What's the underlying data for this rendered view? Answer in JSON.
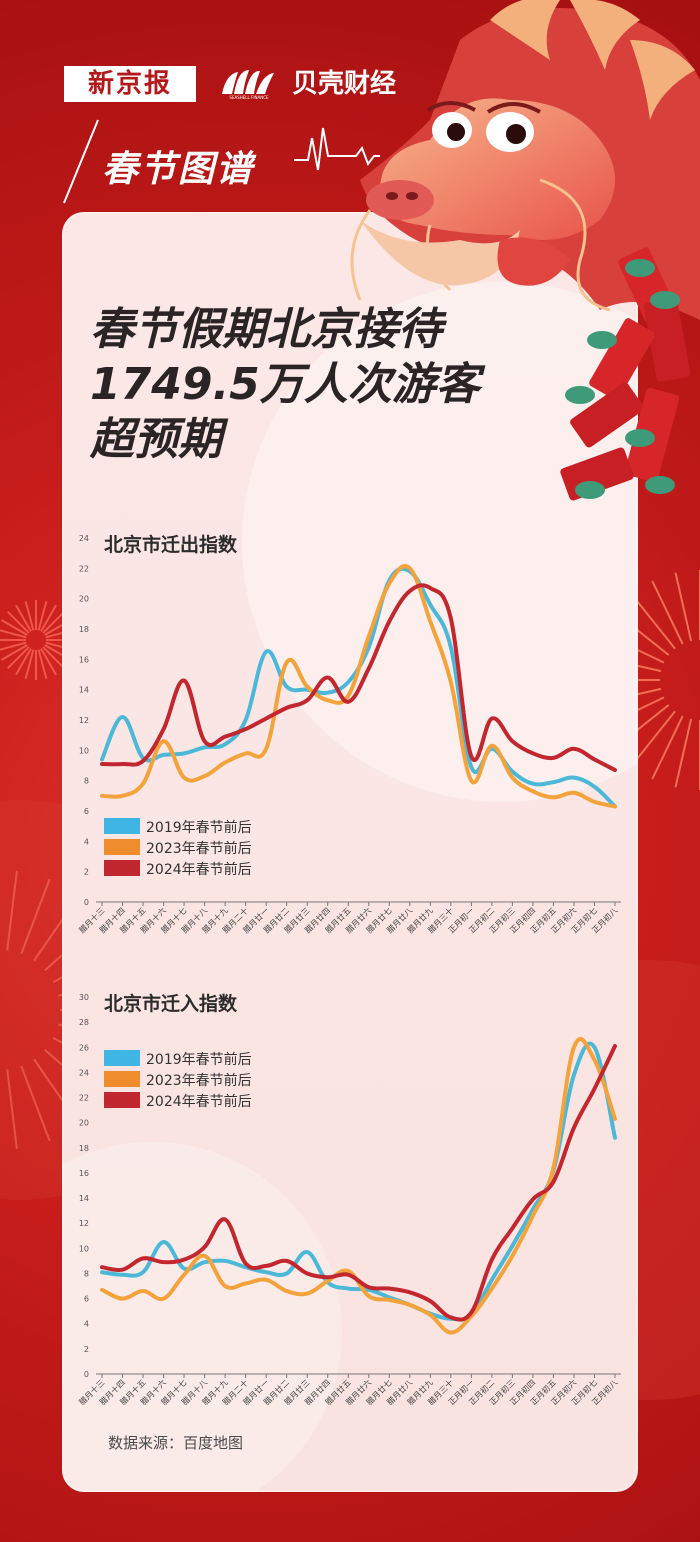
{
  "header": {
    "brand_xjb": "新京报",
    "brand_bk": "贝壳财经",
    "brand_bk_en": "SEASHELL FINANCE",
    "subtitle": "春节图谱"
  },
  "headline": {
    "line1": "春节假期北京接待",
    "line2": "1749.5万人次游客",
    "line3": "超预期"
  },
  "source": "数据来源：百度地图",
  "colors": {
    "s2019": "#4cb8d8",
    "s2023": "#f4a33c",
    "s2024": "#c2262f",
    "legend2019": "#3fb6e4",
    "legend2023": "#ef8d2e",
    "legend2024": "#c2262f"
  },
  "chart_data": [
    {
      "type": "line",
      "title": "北京市迁出指数",
      "categories": [
        "腊月十三",
        "腊月十四",
        "腊月十五",
        "腊月十六",
        "腊月十七",
        "腊月十八",
        "腊月十九",
        "腊月二十",
        "腊月廿一",
        "腊月廿二",
        "腊月廿三",
        "腊月廿四",
        "腊月廿五",
        "腊月廿六",
        "腊月廿七",
        "腊月廿八",
        "腊月廿九",
        "腊月三十",
        "正月初一",
        "正月初二",
        "正月初三",
        "正月初四",
        "正月初五",
        "正月初六",
        "正月初七",
        "正月初八"
      ],
      "ylim": [
        0,
        24
      ],
      "yticks": [
        "0",
        "2",
        "4",
        "6",
        "8",
        "10",
        "12",
        "14",
        "16",
        "18",
        "20",
        "22",
        "24"
      ],
      "legend": "left",
      "series": [
        {
          "name": "2019年春节前后",
          "values": [
            9.4,
            12.2,
            9.5,
            9.7,
            9.8,
            10.2,
            10.4,
            12.0,
            16.5,
            14.2,
            14.0,
            13.8,
            14.5,
            16.8,
            21.2,
            21.8,
            19.6,
            16.8,
            8.9,
            10.1,
            8.6,
            7.8,
            7.9,
            8.2,
            7.6,
            6.3
          ]
        },
        {
          "name": "2023年春节前后",
          "values": [
            7.0,
            7.0,
            7.8,
            10.6,
            8.2,
            8.3,
            9.2,
            9.8,
            10.1,
            15.8,
            14.2,
            13.3,
            13.6,
            17.5,
            21.0,
            22.0,
            18.5,
            14.5,
            8.0,
            10.3,
            8.2,
            7.3,
            6.9,
            7.2,
            6.6,
            6.3
          ]
        },
        {
          "name": "2024年春节前后",
          "values": [
            9.1,
            9.1,
            9.3,
            11.4,
            14.6,
            10.6,
            10.9,
            11.4,
            12.1,
            12.8,
            13.3,
            14.8,
            13.2,
            15.4,
            18.5,
            20.5,
            20.7,
            18.7,
            9.6,
            12.1,
            10.6,
            9.8,
            9.5,
            10.1,
            9.4,
            8.7
          ]
        }
      ]
    },
    {
      "type": "line",
      "title": "北京市迁入指数",
      "categories": [
        "腊月十三",
        "腊月十四",
        "腊月十五",
        "腊月十六",
        "腊月十七",
        "腊月十八",
        "腊月十九",
        "腊月二十",
        "腊月廿一",
        "腊月廿二",
        "腊月廿三",
        "腊月廿四",
        "腊月廿五",
        "腊月廿六",
        "腊月廿七",
        "腊月廿八",
        "腊月廿九",
        "腊月三十",
        "正月初一",
        "正月初二",
        "正月初三",
        "正月初四",
        "正月初五",
        "正月初六",
        "正月初七",
        "正月初八"
      ],
      "ylim": [
        0,
        30
      ],
      "yticks": [
        "0",
        "2",
        "4",
        "6",
        "8",
        "10",
        "12",
        "14",
        "16",
        "18",
        "20",
        "22",
        "24",
        "26",
        "28",
        "30"
      ],
      "legend": "top-left",
      "series": [
        {
          "name": "2019年春节前后",
          "values": [
            8.1,
            7.9,
            8.1,
            10.5,
            8.4,
            8.9,
            9.0,
            8.5,
            8.1,
            8.0,
            9.7,
            7.3,
            6.8,
            6.7,
            6.1,
            5.5,
            4.8,
            4.4,
            4.7,
            7.5,
            10.2,
            13.1,
            16.2,
            23.8,
            26.0,
            18.8
          ]
        },
        {
          "name": "2023年春节前后",
          "values": [
            6.7,
            6.0,
            6.6,
            6.0,
            7.9,
            9.4,
            7.0,
            7.2,
            7.5,
            6.6,
            6.4,
            7.4,
            8.2,
            6.2,
            5.9,
            5.5,
            4.7,
            3.3,
            4.6,
            6.8,
            9.4,
            12.6,
            16.4,
            26.0,
            25.0,
            20.3
          ]
        },
        {
          "name": "2024年春节前后",
          "values": [
            8.5,
            8.3,
            9.2,
            8.9,
            9.1,
            10.1,
            12.3,
            8.8,
            8.6,
            9.0,
            8.0,
            7.7,
            7.9,
            6.9,
            6.8,
            6.5,
            5.8,
            4.5,
            4.9,
            9.1,
            11.6,
            13.9,
            15.3,
            19.6,
            22.7,
            26.1
          ]
        }
      ]
    }
  ]
}
